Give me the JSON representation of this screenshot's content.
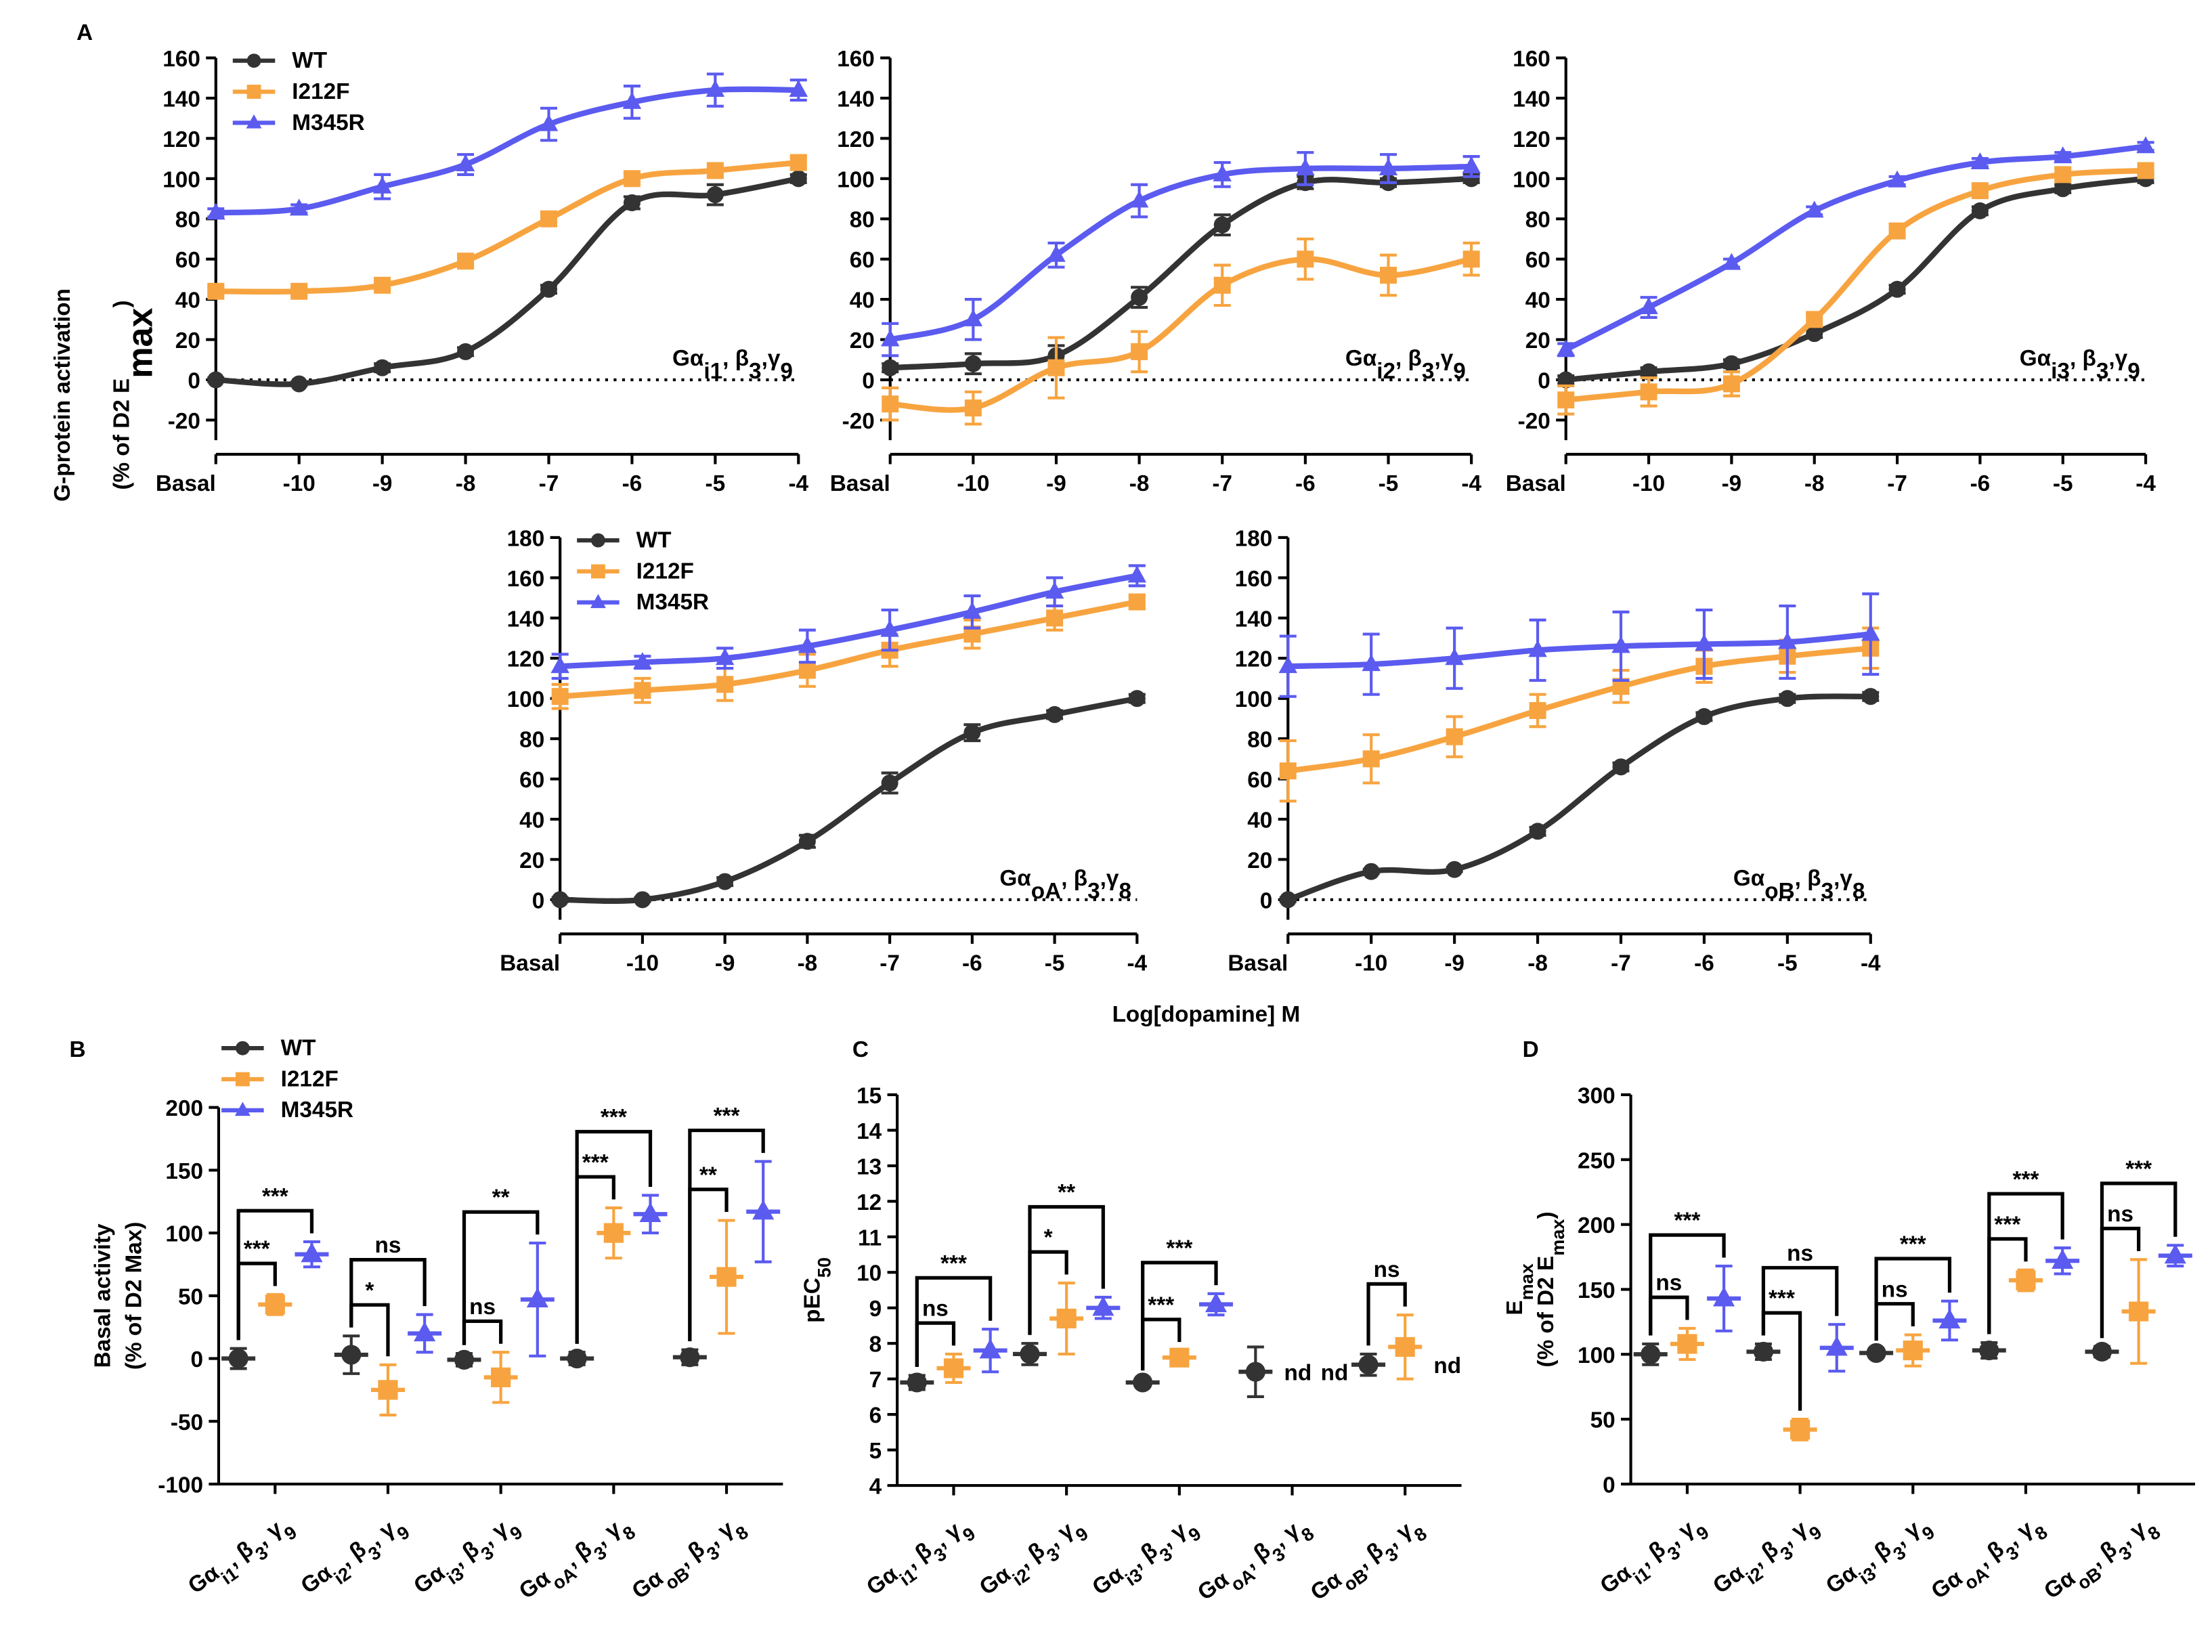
{
  "figure": {
    "panel_labels": [
      "A",
      "B",
      "C",
      "D"
    ],
    "y_label": [
      [
        "G-protein activation"
      ],
      [
        "(% of D2 E",
        "max",
        ")"
      ]
    ],
    "x_label": "Log[dopamine] M"
  },
  "chart_data": [
    {
      "type": "line",
      "legend": "upper left",
      "zero_line": true,
      "label": [
        "Gα",
        "i1",
        ", β",
        "3",
        ",γ",
        "9"
      ],
      "x": [
        -11,
        -10,
        -9,
        -8,
        -7,
        -6,
        -5,
        -4
      ],
      "xlim": [
        -11,
        -4
      ],
      "xticks": [
        {
          "value": -11,
          "label": "Basal"
        },
        -10,
        -9,
        -8,
        -7,
        -6,
        -5,
        -4
      ],
      "ylim": [
        -30,
        160
      ],
      "yticks": [
        -20,
        0,
        20,
        40,
        60,
        80,
        100,
        120,
        140,
        160
      ],
      "series": [
        {
          "name": "WT",
          "color": "#333333",
          "marker": "circle",
          "values": [
            0,
            -2,
            6,
            14,
            45,
            88,
            92,
            100
          ],
          "errors": [
            1,
            1,
            2,
            2,
            2,
            3,
            5,
            2
          ]
        },
        {
          "name": "I212F",
          "color": "#f7a440",
          "marker": "square",
          "values": [
            44,
            44,
            47,
            59,
            80,
            100,
            104,
            108
          ],
          "errors": [
            2,
            2,
            2,
            2,
            3,
            3,
            3,
            3
          ]
        },
        {
          "name": "M345R",
          "color": "#5b5bf0",
          "marker": "triangle",
          "values": [
            83,
            85,
            96,
            107,
            127,
            138,
            144,
            144
          ],
          "errors": [
            2,
            2,
            6,
            5,
            8,
            8,
            8,
            5
          ]
        }
      ]
    },
    {
      "type": "line",
      "zero_line": true,
      "label": [
        "Gα",
        "i2",
        ", β",
        "3",
        ",γ",
        "9"
      ],
      "x": [
        -11,
        -10,
        -9,
        -8,
        -7,
        -6,
        -5,
        -4
      ],
      "xlim": [
        -11,
        -4
      ],
      "xticks": [
        {
          "value": -11,
          "label": "Basal"
        },
        -10,
        -9,
        -8,
        -7,
        -6,
        -5,
        -4
      ],
      "ylim": [
        -30,
        160
      ],
      "yticks": [
        -20,
        0,
        20,
        40,
        60,
        80,
        100,
        120,
        140,
        160
      ],
      "series": [
        {
          "name": "WT",
          "color": "#333333",
          "marker": "circle",
          "values": [
            6,
            8,
            12,
            41,
            77,
            98,
            98,
            100
          ],
          "errors": [
            2,
            5,
            5,
            5,
            5,
            3,
            2,
            2
          ]
        },
        {
          "name": "I212F",
          "color": "#f7a440",
          "marker": "square",
          "values": [
            -12,
            -14,
            6,
            14,
            47,
            60,
            52,
            60
          ],
          "errors": [
            8,
            8,
            15,
            10,
            10,
            10,
            10,
            8
          ]
        },
        {
          "name": "M345R",
          "color": "#5b5bf0",
          "marker": "triangle",
          "values": [
            20,
            30,
            62,
            89,
            102,
            105,
            105,
            106
          ],
          "errors": [
            8,
            10,
            6,
            8,
            6,
            8,
            7,
            5
          ]
        }
      ]
    },
    {
      "type": "line",
      "zero_line": true,
      "label": [
        "Gα",
        "i3",
        ", β",
        "3",
        ",γ",
        "9"
      ],
      "x": [
        -11,
        -10,
        -9,
        -8,
        -7,
        -6,
        -5,
        -4
      ],
      "xlim": [
        -11,
        -4
      ],
      "xticks": [
        {
          "value": -11,
          "label": "Basal"
        },
        -10,
        -9,
        -8,
        -7,
        -6,
        -5,
        -4
      ],
      "ylim": [
        -30,
        160
      ],
      "yticks": [
        -20,
        0,
        20,
        40,
        60,
        80,
        100,
        120,
        140,
        160
      ],
      "series": [
        {
          "name": "WT",
          "color": "#333333",
          "marker": "circle",
          "values": [
            0,
            4,
            8,
            23,
            45,
            84,
            95,
            100
          ],
          "errors": [
            2,
            2,
            2,
            2,
            2,
            2,
            2,
            2
          ]
        },
        {
          "name": "I212F",
          "color": "#f7a440",
          "marker": "square",
          "values": [
            -10,
            -6,
            -2,
            30,
            74,
            94,
            102,
            104
          ],
          "errors": [
            7,
            7,
            6,
            3,
            3,
            3,
            3,
            3
          ]
        },
        {
          "name": "M345R",
          "color": "#5b5bf0",
          "marker": "triangle",
          "values": [
            15,
            36,
            58,
            84,
            99,
            108,
            111,
            116
          ],
          "errors": [
            3,
            5,
            2,
            2,
            2,
            2,
            2,
            2
          ]
        }
      ]
    },
    {
      "type": "line",
      "legend": "upper left",
      "zero_line": true,
      "label": [
        "Gα",
        "oA",
        ", β",
        "3",
        ",γ",
        "8"
      ],
      "x": [
        -11,
        -10,
        -9,
        -8,
        -7,
        -6,
        -5,
        -4
      ],
      "xlim": [
        -11,
        -4
      ],
      "xticks": [
        {
          "value": -11,
          "label": "Basal"
        },
        -10,
        -9,
        -8,
        -7,
        -6,
        -5,
        -4
      ],
      "ylim": [
        -10,
        180
      ],
      "yticks": [
        0,
        20,
        40,
        60,
        80,
        100,
        120,
        140,
        160,
        180
      ],
      "series": [
        {
          "name": "WT",
          "color": "#333333",
          "marker": "circle",
          "values": [
            0,
            0,
            9,
            29,
            58,
            83,
            92,
            100
          ],
          "errors": [
            1,
            1,
            2,
            3,
            5,
            4,
            2,
            2
          ]
        },
        {
          "name": "I212F",
          "color": "#f7a440",
          "marker": "square",
          "values": [
            101,
            104,
            107,
            114,
            124,
            132,
            140,
            148
          ],
          "errors": [
            6,
            6,
            8,
            8,
            8,
            7,
            6,
            3
          ]
        },
        {
          "name": "M345R",
          "color": "#5b5bf0",
          "marker": "triangle",
          "values": [
            116,
            118,
            120,
            126,
            134,
            143,
            153,
            161
          ],
          "errors": [
            6,
            3,
            5,
            8,
            10,
            8,
            7,
            5
          ]
        }
      ]
    },
    {
      "type": "line",
      "zero_line": true,
      "label": [
        "Gα",
        "oB",
        ", β",
        "3",
        ",γ",
        "8"
      ],
      "x": [
        -11,
        -10,
        -9,
        -8,
        -7,
        -6,
        -5,
        -4
      ],
      "xlim": [
        -11,
        -4
      ],
      "xticks": [
        {
          "value": -11,
          "label": "Basal"
        },
        -10,
        -9,
        -8,
        -7,
        -6,
        -5,
        -4
      ],
      "ylim": [
        -10,
        180
      ],
      "yticks": [
        0,
        20,
        40,
        60,
        80,
        100,
        120,
        140,
        160,
        180
      ],
      "series": [
        {
          "name": "WT",
          "color": "#333333",
          "marker": "circle",
          "values": [
            0,
            14,
            15,
            34,
            66,
            91,
            100,
            101
          ],
          "errors": [
            1,
            1,
            1,
            2,
            2,
            2,
            2,
            2
          ]
        },
        {
          "name": "I212F",
          "color": "#f7a440",
          "marker": "square",
          "values": [
            64,
            70,
            81,
            94,
            106,
            116,
            121,
            125
          ],
          "errors": [
            15,
            12,
            10,
            8,
            8,
            8,
            8,
            10
          ]
        },
        {
          "name": "M345R",
          "color": "#5b5bf0",
          "marker": "triangle",
          "values": [
            116,
            117,
            120,
            124,
            126,
            127,
            128,
            132
          ],
          "errors": [
            15,
            15,
            15,
            15,
            17,
            17,
            18,
            20
          ]
        }
      ]
    },
    {
      "type": "dot",
      "legend": "top",
      "y_label": [
        [
          "Basal activity"
        ],
        [
          "(% of D2 Max)"
        ]
      ],
      "categories": [
        [
          "Gα",
          "i1",
          ", β",
          "3",
          ", γ",
          "9"
        ],
        [
          "Gα",
          "i2",
          ", β",
          "3",
          ", γ",
          "9"
        ],
        [
          "Gα",
          "i3",
          ", β",
          "3",
          ", γ",
          "9"
        ],
        [
          "Gα",
          "oA",
          ", β",
          "3",
          ", γ",
          "8"
        ],
        [
          "Gα",
          "oB",
          ", β",
          "3",
          ", γ",
          "8"
        ]
      ],
      "ylim": [
        -100,
        200
      ],
      "yticks": [
        -100,
        -50,
        0,
        50,
        100,
        150,
        200
      ],
      "series": [
        {
          "name": "WT",
          "color": "#333333",
          "marker": "circle",
          "values": [
            0,
            3,
            -1,
            0,
            1
          ],
          "errors": [
            8,
            15,
            5,
            5,
            6
          ]
        },
        {
          "name": "I212F",
          "color": "#f7a440",
          "marker": "square",
          "values": [
            43,
            -25,
            -15,
            100,
            65
          ],
          "errors": [
            8,
            20,
            20,
            20,
            45
          ],
          "significance": [
            "***",
            "*",
            "ns",
            "***",
            "**"
          ]
        },
        {
          "name": "M345R",
          "color": "#5b5bf0",
          "marker": "triangle",
          "values": [
            83,
            20,
            47,
            115,
            117
          ],
          "errors": [
            10,
            15,
            45,
            15,
            40
          ],
          "significance": [
            "***",
            "ns",
            "**",
            "***",
            "***"
          ]
        }
      ]
    },
    {
      "type": "dot",
      "y_label": [
        [
          "pEC",
          "50"
        ]
      ],
      "categories": [
        [
          "Gα",
          "i1",
          ", β",
          "3",
          ", γ",
          "9"
        ],
        [
          "Gα",
          "i2",
          ", β",
          "3",
          ", γ",
          "9"
        ],
        [
          "Gα",
          "i3",
          ", β",
          "3",
          ", γ",
          "9"
        ],
        [
          "Gα",
          "oA",
          ", β",
          "3",
          ", γ",
          "8"
        ],
        [
          "Gα",
          "oB",
          ", β",
          "3",
          ", γ",
          "8"
        ]
      ],
      "ylim": [
        4,
        15
      ],
      "yticks": [
        4,
        5,
        6,
        7,
        8,
        9,
        10,
        11,
        12,
        13,
        14,
        15
      ],
      "series": [
        {
          "name": "WT",
          "color": "#333333",
          "marker": "circle",
          "values": [
            6.9,
            7.7,
            6.9,
            7.2,
            7.4
          ],
          "errors": [
            0.2,
            0.3,
            0.1,
            0.7,
            0.3
          ]
        },
        {
          "name": "I212F",
          "color": "#f7a440",
          "marker": "square",
          "values": [
            7.3,
            8.7,
            7.6,
            null,
            7.9
          ],
          "errors": [
            0.4,
            1.0,
            0.2,
            null,
            0.9
          ],
          "value_labels": [
            null,
            null,
            null,
            "nd",
            null
          ],
          "significance": [
            "ns",
            "*",
            "***",
            null,
            "ns"
          ]
        },
        {
          "name": "M345R",
          "color": "#5b5bf0",
          "marker": "triangle",
          "values": [
            7.8,
            9.0,
            9.1,
            null,
            null
          ],
          "errors": [
            0.6,
            0.3,
            0.3,
            null,
            null
          ],
          "value_labels": [
            null,
            null,
            null,
            "nd",
            "nd"
          ],
          "significance": [
            "***",
            "**",
            "***",
            null,
            null
          ]
        }
      ]
    },
    {
      "type": "dot",
      "y_label": [
        [
          "E",
          "max"
        ],
        [
          "(% of D2 E",
          "max",
          ")"
        ]
      ],
      "categories": [
        [
          "Gα",
          "i1",
          ", β",
          "3",
          ", γ",
          "9"
        ],
        [
          "Gα",
          "i2",
          ", β",
          "3",
          ", γ",
          "9"
        ],
        [
          "Gα",
          "i3",
          ", β",
          "3",
          ", γ",
          "9"
        ],
        [
          "Gα",
          "oA",
          ", β",
          "3",
          ", γ",
          "8"
        ],
        [
          "Gα",
          "oB",
          ", β",
          "3",
          ", γ",
          "8"
        ]
      ],
      "ylim": [
        0,
        300
      ],
      "yticks": [
        0,
        50,
        100,
        150,
        200,
        250,
        300
      ],
      "series": [
        {
          "name": "WT",
          "color": "#333333",
          "marker": "circle",
          "values": [
            100,
            102,
            101,
            103,
            102
          ],
          "errors": [
            8,
            6,
            3,
            6,
            4
          ]
        },
        {
          "name": "I212F",
          "color": "#f7a440",
          "marker": "square",
          "values": [
            108,
            42,
            103,
            157,
            133
          ],
          "errors": [
            12,
            8,
            12,
            8,
            40
          ],
          "significance": [
            "ns",
            "***",
            "ns",
            "***",
            "ns"
          ]
        },
        {
          "name": "M345R",
          "color": "#5b5bf0",
          "marker": "triangle",
          "values": [
            143,
            105,
            126,
            172,
            176
          ],
          "errors": [
            25,
            18,
            15,
            10,
            8
          ],
          "significance": [
            "***",
            "ns",
            "***",
            "***",
            "***"
          ]
        }
      ]
    }
  ]
}
